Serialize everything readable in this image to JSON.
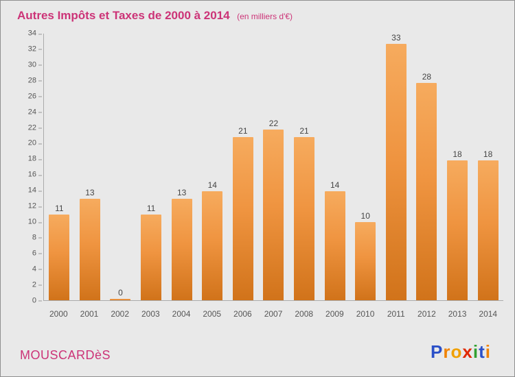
{
  "header": {
    "title": "Autres Impôts et Taxes de 2000 à 2014",
    "subtitle": "(en milliers d'€)"
  },
  "chart_data": {
    "type": "bar",
    "title": "Autres Impôts et Taxes de 2000 à 2014",
    "subtitle": "(en milliers d'€)",
    "categories": [
      "2000",
      "2001",
      "2002",
      "2003",
      "2004",
      "2005",
      "2006",
      "2007",
      "2008",
      "2009",
      "2010",
      "2011",
      "2012",
      "2013",
      "2014"
    ],
    "values": [
      11,
      13,
      0,
      11,
      13,
      14,
      21,
      22,
      21,
      14,
      10,
      33,
      28,
      18,
      18
    ],
    "xlabel": "",
    "ylabel": "",
    "ylim": [
      0,
      34
    ],
    "ytick_step": 2,
    "grid": false,
    "legend": "none",
    "bar_gradient_top": "#f6ab5e",
    "bar_gradient_bottom": "#d1731a"
  },
  "footer": {
    "place": "MOUSCARDèS",
    "logo_letters": [
      {
        "ch": "P",
        "color": "#2b50c8"
      },
      {
        "ch": "r",
        "color": "#f08200"
      },
      {
        "ch": "o",
        "color": "#f0a000"
      },
      {
        "ch": "x",
        "color": "#e02800"
      },
      {
        "ch": "i",
        "color": "#30a030"
      },
      {
        "ch": "t",
        "color": "#2b50c8"
      },
      {
        "ch": "i",
        "color": "#f08200"
      }
    ]
  },
  "colors": {
    "title": "#cc3377",
    "background": "#e9e9e9",
    "axis": "#aaaaaa",
    "tick_text": "#555555",
    "value_label": "#444444"
  }
}
